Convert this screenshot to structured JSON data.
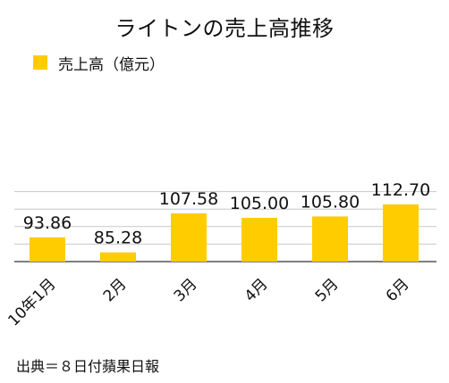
{
  "colors": {
    "bar": "#FFCC00",
    "grid": "#c8c8c8",
    "axis": "#555555",
    "text": "#111111"
  },
  "legend": {
    "label": "売上高（億元）"
  },
  "source": "出典＝８日付蘋果日報",
  "chart_data": {
    "type": "bar",
    "title": "ライトンの売上高推移",
    "categories": [
      "10年1月",
      "2月",
      "3月",
      "4月",
      "5月",
      "6月"
    ],
    "series": [
      {
        "name": "売上高（億元）",
        "values": [
          93.86,
          85.28,
          107.58,
          105.0,
          105.8,
          112.7
        ]
      }
    ],
    "data_labels": [
      "93.86",
      "85.28",
      "107.58",
      "105.00",
      "105.80",
      "112.70"
    ],
    "ylim": [
      80,
      120
    ],
    "gridlines": [
      80,
      90,
      100,
      110,
      120
    ],
    "xlabel": "",
    "ylabel": "",
    "grid": true,
    "legend_position": "top-left"
  }
}
